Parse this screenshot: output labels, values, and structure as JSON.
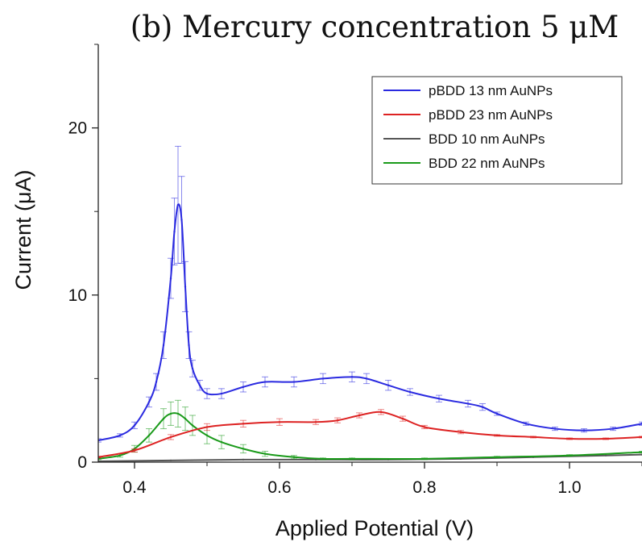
{
  "chart_data": {
    "type": "line",
    "title": "(b) Mercury concentration 5 μM",
    "xlabel": "Applied Potential (V)",
    "ylabel": "Current (μA)",
    "xlim": [
      0.35,
      1.1
    ],
    "ylim": [
      0,
      25
    ],
    "xticks": [
      0.4,
      0.6,
      0.8,
      1.0
    ],
    "xtick_labels": [
      "0.4",
      "0.6",
      "0.8",
      "1.0"
    ],
    "yticks": [
      0,
      10,
      20
    ],
    "ytick_labels": [
      "0",
      "10",
      "20"
    ],
    "grid": false,
    "error_bars": true,
    "legend_position": "top-right",
    "series": [
      {
        "name": "pBDD 13 nm AuNPs",
        "color": "#2a2ae0",
        "x": [
          0.35,
          0.38,
          0.4,
          0.42,
          0.43,
          0.44,
          0.45,
          0.455,
          0.46,
          0.465,
          0.47,
          0.475,
          0.48,
          0.49,
          0.5,
          0.52,
          0.55,
          0.58,
          0.62,
          0.66,
          0.7,
          0.72,
          0.75,
          0.78,
          0.82,
          0.86,
          0.88,
          0.9,
          0.94,
          0.98,
          1.02,
          1.06,
          1.1
        ],
        "y": [
          1.3,
          1.6,
          2.2,
          3.6,
          4.8,
          7.0,
          11.0,
          13.8,
          15.4,
          14.5,
          10.5,
          7.0,
          5.6,
          4.6,
          4.1,
          4.1,
          4.5,
          4.8,
          4.8,
          5.0,
          5.1,
          5.0,
          4.6,
          4.2,
          3.8,
          3.5,
          3.3,
          2.9,
          2.3,
          2.0,
          1.9,
          2.0,
          2.3
        ],
        "err_y": [
          0.1,
          0.1,
          0.2,
          0.3,
          0.5,
          0.8,
          1.2,
          2.0,
          3.5,
          2.6,
          1.5,
          0.8,
          0.5,
          0.3,
          0.3,
          0.3,
          0.3,
          0.3,
          0.3,
          0.3,
          0.3,
          0.3,
          0.3,
          0.2,
          0.2,
          0.2,
          0.2,
          0.1,
          0.1,
          0.1,
          0.1,
          0.1,
          0.1
        ]
      },
      {
        "name": "pBDD 23 nm AuNPs",
        "color": "#dd2222",
        "x": [
          0.35,
          0.4,
          0.45,
          0.5,
          0.55,
          0.6,
          0.65,
          0.68,
          0.71,
          0.74,
          0.77,
          0.8,
          0.85,
          0.9,
          0.95,
          1.0,
          1.05,
          1.1
        ],
        "y": [
          0.3,
          0.7,
          1.5,
          2.1,
          2.3,
          2.4,
          2.4,
          2.5,
          2.8,
          3.0,
          2.6,
          2.1,
          1.8,
          1.6,
          1.5,
          1.4,
          1.4,
          1.5
        ],
        "err_y": [
          0.05,
          0.1,
          0.15,
          0.2,
          0.2,
          0.2,
          0.15,
          0.15,
          0.15,
          0.15,
          0.15,
          0.1,
          0.1,
          0.05,
          0.05,
          0.05,
          0.05,
          0.05
        ]
      },
      {
        "name": "BDD 10 nm AuNPs",
        "color": "#555555",
        "x": [
          0.35,
          0.45,
          0.55,
          0.65,
          0.75,
          0.85,
          0.95,
          1.05,
          1.1
        ],
        "y": [
          0.05,
          0.1,
          0.15,
          0.15,
          0.15,
          0.2,
          0.3,
          0.4,
          0.45
        ],
        "err_y": [
          0,
          0,
          0,
          0,
          0,
          0,
          0,
          0,
          0
        ]
      },
      {
        "name": "BDD 22 nm AuNPs",
        "color": "#1a9a1a",
        "x": [
          0.35,
          0.38,
          0.4,
          0.42,
          0.44,
          0.45,
          0.46,
          0.47,
          0.48,
          0.5,
          0.52,
          0.55,
          0.58,
          0.62,
          0.66,
          0.7,
          0.8,
          0.9,
          1.0,
          1.1
        ],
        "y": [
          0.2,
          0.4,
          0.8,
          1.6,
          2.6,
          2.9,
          2.9,
          2.6,
          2.2,
          1.6,
          1.2,
          0.8,
          0.5,
          0.3,
          0.2,
          0.2,
          0.2,
          0.3,
          0.4,
          0.6
        ],
        "err_y": [
          0.05,
          0.1,
          0.2,
          0.4,
          0.6,
          0.7,
          0.8,
          0.7,
          0.6,
          0.5,
          0.4,
          0.25,
          0.15,
          0.1,
          0.05,
          0.05,
          0.05,
          0.05,
          0.05,
          0.05
        ]
      }
    ]
  }
}
